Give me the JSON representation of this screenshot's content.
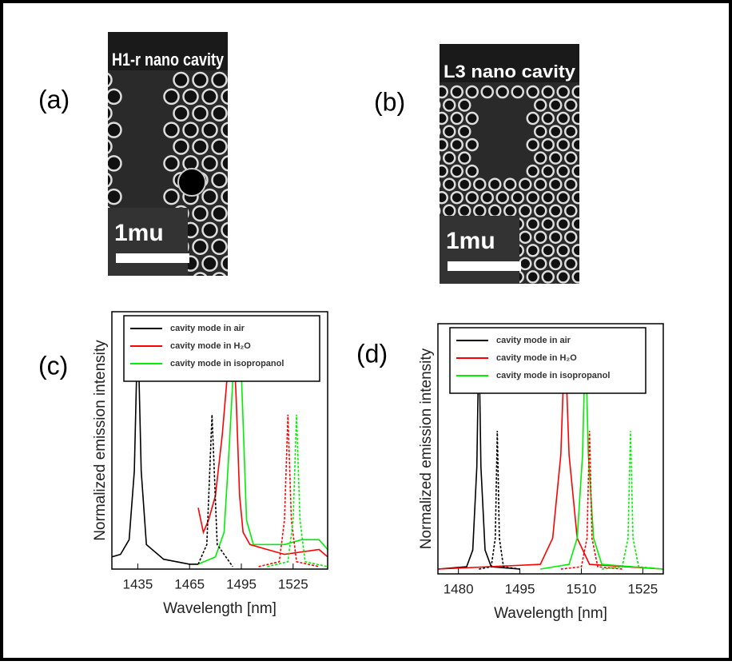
{
  "panels": [
    {
      "label": "(a)",
      "image_title": "H1-r nano cavity",
      "scale_label": "1mu"
    },
    {
      "label": "(b)",
      "image_title": "L3 nano cavity",
      "scale_label": "1mu"
    }
  ],
  "chart_data": [
    {
      "type": "line",
      "panel_label": "(c)",
      "x_label": "Wavelength [nm]",
      "y_label": "Normalized emission intensity",
      "xlim": [
        1420,
        1545
      ],
      "xticks": [
        1435,
        1465,
        1495,
        1525
      ],
      "ylim": [
        0,
        1.05
      ],
      "series": [
        {
          "name": "cavity mode in air",
          "color": "#000000",
          "x": [
            1420,
            1425,
            1430,
            1433,
            1435,
            1437,
            1440,
            1450,
            1465,
            1470
          ],
          "values": [
            0.05,
            0.06,
            0.12,
            0.4,
            1.0,
            0.4,
            0.1,
            0.04,
            0.02,
            0.02
          ]
        },
        {
          "name": "cavity mode in H₂O",
          "color": "#ff0000",
          "x": [
            1470,
            1473,
            1476,
            1480,
            1484,
            1487,
            1490,
            1492,
            1494,
            1496,
            1500,
            1510,
            1520,
            1530,
            1540,
            1545
          ],
          "values": [
            0.25,
            0.15,
            0.2,
            0.3,
            0.55,
            0.8,
            1.0,
            0.7,
            0.3,
            0.15,
            0.1,
            0.08,
            0.06,
            0.07,
            0.08,
            0.05
          ]
        },
        {
          "name": "cavity mode in isopropanol",
          "color": "#00ee00",
          "x": [
            1470,
            1480,
            1485,
            1488,
            1491,
            1494,
            1496,
            1498,
            1502,
            1520,
            1530,
            1540,
            1545
          ],
          "values": [
            0.02,
            0.05,
            0.15,
            0.5,
            0.9,
            1.0,
            0.6,
            0.2,
            0.1,
            0.1,
            0.12,
            0.12,
            0.08
          ]
        },
        {
          "color": "#000000",
          "dashed": true,
          "x": [
            1470,
            1475,
            1478,
            1481,
            1490
          ],
          "values": [
            0.02,
            0.1,
            0.63,
            0.1,
            0.01
          ]
        },
        {
          "color": "#ff0000",
          "dashed": true,
          "x": [
            1505,
            1517,
            1520,
            1522,
            1524,
            1527,
            1540
          ],
          "values": [
            0.01,
            0.03,
            0.2,
            0.63,
            0.2,
            0.03,
            0.01
          ]
        },
        {
          "color": "#00ee00",
          "dashed": true,
          "x": [
            1510,
            1522,
            1525,
            1527,
            1529,
            1532,
            1545
          ],
          "values": [
            0.01,
            0.03,
            0.2,
            0.63,
            0.2,
            0.03,
            0.01
          ]
        }
      ]
    },
    {
      "type": "line",
      "panel_label": "(d)",
      "x_label": "Wavelength [nm]",
      "y_label": "Normalized emission intensity",
      "xlim": [
        1475,
        1530
      ],
      "xticks": [
        1480,
        1495,
        1510,
        1525
      ],
      "ylim": [
        0,
        1.05
      ],
      "series": [
        {
          "name": "cavity mode in air",
          "color": "#000000",
          "x": [
            1475,
            1482,
            1483.5,
            1484.5,
            1485,
            1485.5,
            1486.5,
            1488,
            1495
          ],
          "values": [
            0.02,
            0.03,
            0.1,
            0.45,
            1.0,
            0.45,
            0.1,
            0.03,
            0.02
          ]
        },
        {
          "name": "cavity mode in H₂O",
          "color": "#ff0000",
          "x": [
            1475,
            1500,
            1503,
            1505,
            1506,
            1507,
            1509,
            1512,
            1530
          ],
          "values": [
            0.02,
            0.04,
            0.15,
            0.5,
            1.0,
            0.5,
            0.15,
            0.04,
            0.02
          ]
        },
        {
          "name": "cavity mode in isopropanol",
          "color": "#00ee00",
          "x": [
            1500,
            1507,
            1509,
            1510.3,
            1511,
            1511.7,
            1513,
            1515,
            1530
          ],
          "values": [
            0.02,
            0.04,
            0.15,
            0.5,
            1.0,
            0.5,
            0.15,
            0.04,
            0.02
          ]
        },
        {
          "color": "#000000",
          "dashed": true,
          "x": [
            1485,
            1488,
            1489,
            1489.5,
            1490,
            1491,
            1495
          ],
          "values": [
            0.02,
            0.03,
            0.15,
            0.6,
            0.15,
            0.03,
            0.02
          ]
        },
        {
          "color": "#ff0000",
          "dashed": true,
          "x": [
            1505,
            1510,
            1511.4,
            1512,
            1512.6,
            1514,
            1520
          ],
          "values": [
            0.02,
            0.03,
            0.15,
            0.6,
            0.15,
            0.03,
            0.02
          ]
        },
        {
          "color": "#00ee00",
          "dashed": true,
          "x": [
            1515,
            1520,
            1521.4,
            1522,
            1522.6,
            1524,
            1530
          ],
          "values": [
            0.02,
            0.03,
            0.15,
            0.6,
            0.15,
            0.03,
            0.02
          ]
        }
      ]
    }
  ]
}
